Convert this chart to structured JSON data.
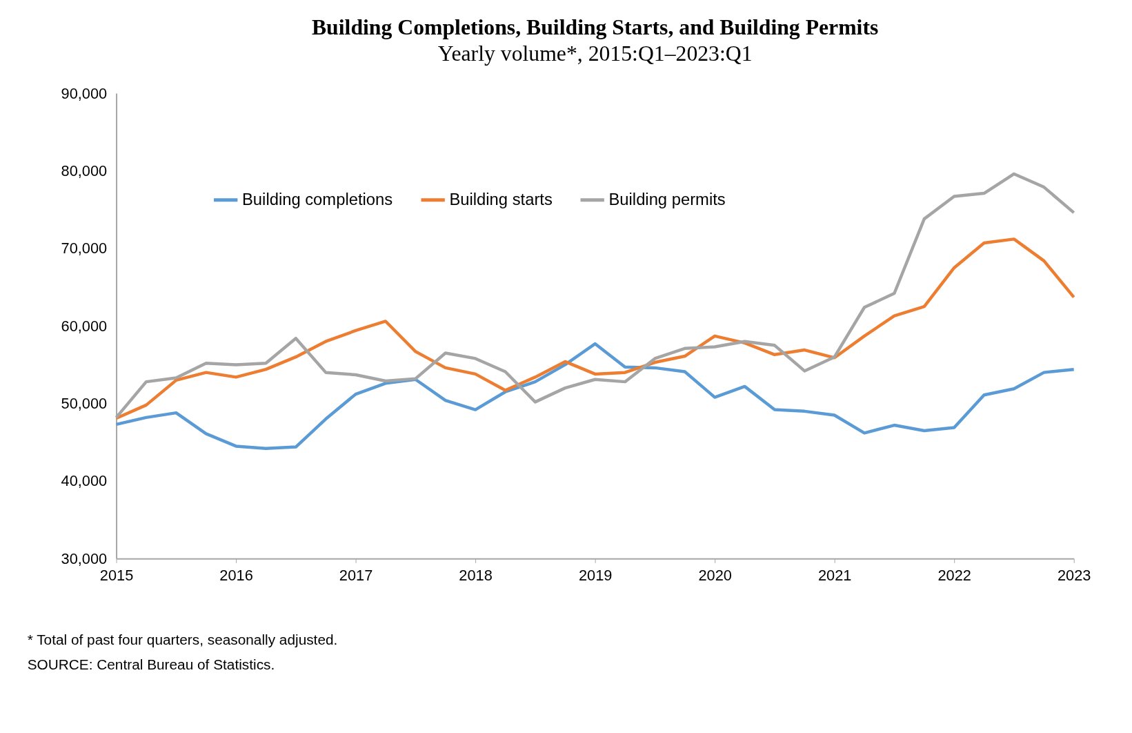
{
  "chart_data": {
    "type": "line",
    "title": "Building Completions, Building Starts, and Building Permits",
    "subtitle": "Yearly volume*, 2015:Q1–2023:Q1",
    "x": [
      2015,
      2015.25,
      2015.5,
      2015.75,
      2016,
      2016.25,
      2016.5,
      2016.75,
      2017,
      2017.25,
      2017.5,
      2017.75,
      2018,
      2018.25,
      2018.5,
      2018.75,
      2019,
      2019.25,
      2019.5,
      2019.75,
      2020,
      2020.25,
      2020.5,
      2020.75,
      2021,
      2021.25,
      2021.5,
      2021.75,
      2022,
      2022.25,
      2022.5,
      2022.75,
      2023
    ],
    "series": [
      {
        "name": "Building completions",
        "color": "#5b9bd5",
        "values": [
          47300,
          48200,
          48800,
          46100,
          44500,
          44200,
          44400,
          48000,
          51200,
          52600,
          53100,
          50400,
          49200,
          51500,
          52800,
          55000,
          57700,
          54700,
          54600,
          54100,
          50800,
          52200,
          49200,
          49000,
          48500,
          46200,
          47200,
          46500,
          46900,
          51100,
          51900,
          54000,
          54400
        ]
      },
      {
        "name": "Building starts",
        "color": "#ed7d31",
        "values": [
          48100,
          49800,
          53000,
          54000,
          53400,
          54400,
          56000,
          58000,
          59400,
          60600,
          56700,
          54600,
          53800,
          51700,
          53400,
          55400,
          53800,
          54000,
          55300,
          56100,
          58700,
          57800,
          56300,
          56900,
          55900,
          58700,
          61300,
          62500,
          67500,
          70700,
          71200,
          68400,
          63700
        ]
      },
      {
        "name": "Building permits",
        "color": "#a5a5a5",
        "values": [
          48200,
          52800,
          53300,
          55200,
          55000,
          55200,
          58400,
          54000,
          53700,
          52900,
          53200,
          56500,
          55800,
          54100,
          50200,
          52000,
          53100,
          52800,
          55800,
          57100,
          57300,
          58000,
          57500,
          54200,
          56000,
          62400,
          64200,
          73800,
          76700,
          77100,
          79600,
          77900,
          74600
        ]
      }
    ],
    "xlim": [
      2015,
      2023
    ],
    "xticks": [
      2015,
      2016,
      2017,
      2018,
      2019,
      2020,
      2021,
      2022,
      2023
    ],
    "ylim": [
      30000,
      90000
    ],
    "yticks": [
      {
        "value": 30000,
        "label": "30,000"
      },
      {
        "value": 40000,
        "label": "40,000"
      },
      {
        "value": 50000,
        "label": "50,000"
      },
      {
        "value": 60000,
        "label": "60,000"
      },
      {
        "value": 70000,
        "label": "70,000"
      },
      {
        "value": 80000,
        "label": "80,000"
      },
      {
        "value": 90000,
        "label": "90,000"
      }
    ],
    "grid": false,
    "legend": "top",
    "marker": "none",
    "line_style": "solid",
    "annotations": [
      "* Total of past four quarters, seasonally adjusted.",
      "SOURCE: Central Bureau of Statistics."
    ]
  }
}
